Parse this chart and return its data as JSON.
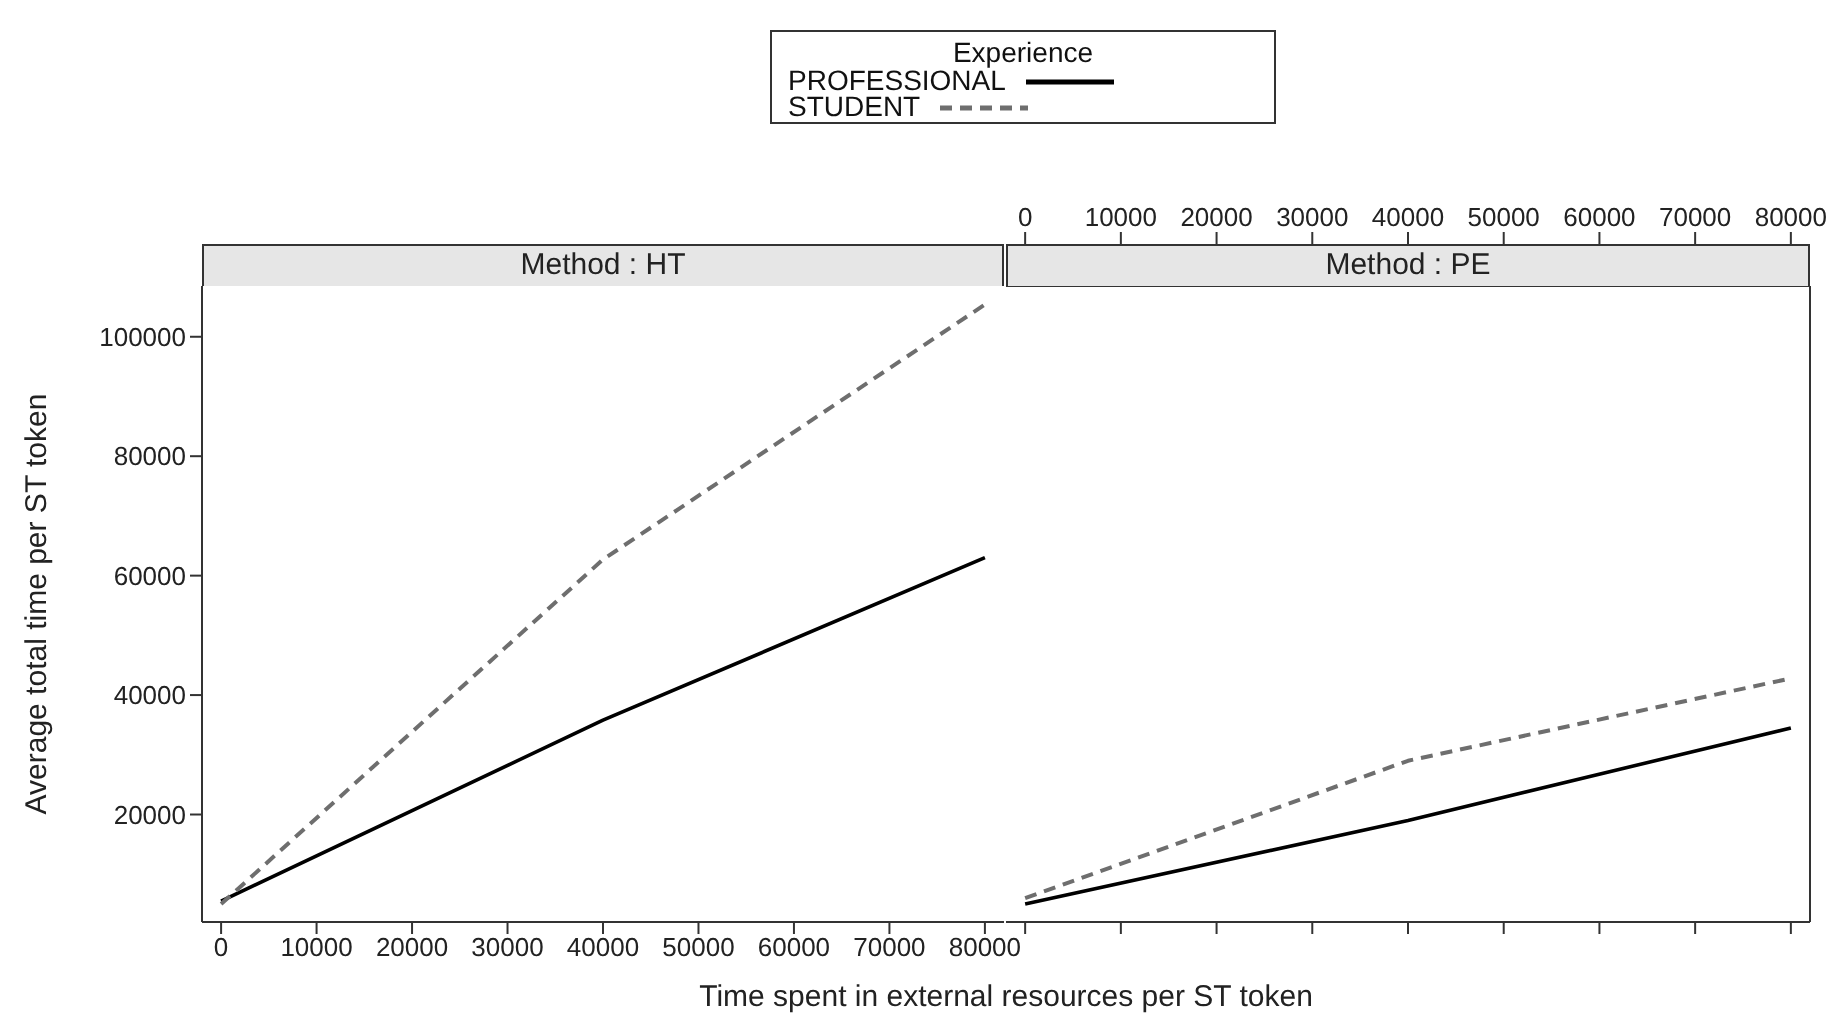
{
  "chart_data": [
    {
      "type": "line",
      "title": "Method : HT",
      "xlabel": "Time spent in external resources per ST token",
      "ylabel": "Average total time per ST token",
      "legend_title": "Experience",
      "legend": "top",
      "x": [
        0,
        40000,
        80000
      ],
      "series": [
        {
          "name": "PROFESSIONAL",
          "color": "#000000",
          "line_style": "solid",
          "values": [
            5500,
            35800,
            63000
          ]
        },
        {
          "name": "STUDENT",
          "color": "#6e6e6e",
          "line_style": "dashed",
          "values": [
            5000,
            62700,
            105400
          ]
        }
      ],
      "xlim": [
        -2000,
        82000
      ],
      "xticks": [
        0,
        10000,
        20000,
        30000,
        40000,
        50000,
        60000,
        70000,
        80000
      ],
      "ylim": [
        2000,
        108500
      ],
      "yticks": [
        20000,
        40000,
        60000,
        80000,
        100000
      ]
    },
    {
      "type": "line",
      "title": "Method : PE",
      "x": [
        0,
        40000,
        80000
      ],
      "series": [
        {
          "color": "#000000",
          "line_style": "solid",
          "values": [
            5000,
            19000,
            34500
          ]
        },
        {
          "color": "#6e6e6e",
          "line_style": "dashed",
          "values": [
            6000,
            29000,
            42800
          ]
        }
      ],
      "xlim": [
        -2000,
        82000
      ],
      "xticks": [
        0,
        10000,
        20000,
        30000,
        40000,
        50000,
        60000,
        70000,
        80000
      ],
      "ylim": [
        2000,
        108500
      ],
      "yticks": [
        20000,
        40000,
        60000,
        80000,
        100000
      ],
      "tick_labels": "x"
    }
  ]
}
